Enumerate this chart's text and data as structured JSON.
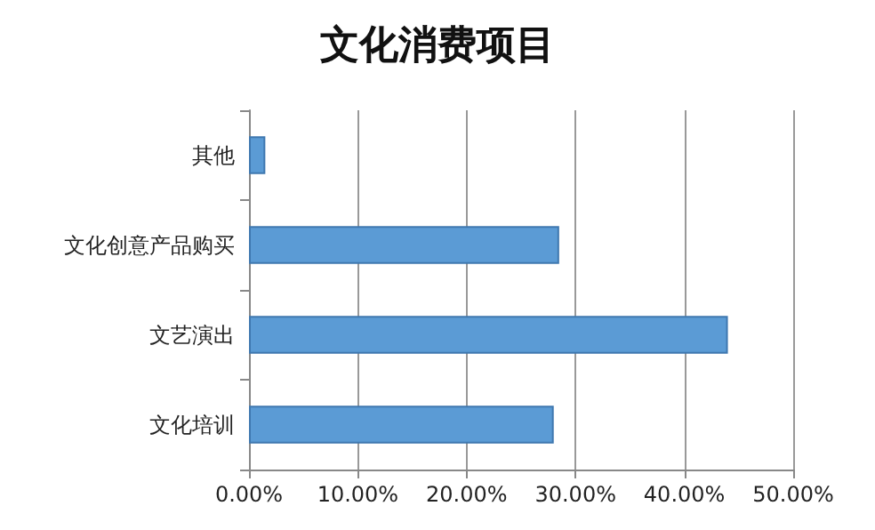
{
  "chart_data": {
    "type": "bar",
    "title": "文化消费项目",
    "orientation": "horizontal",
    "categories": [
      "其他",
      "文化创意产品购买",
      "文艺演出",
      "文化培训"
    ],
    "values": [
      1.5,
      28.5,
      44,
      28
    ],
    "color": "#5b9bd5",
    "xlim": [
      0,
      50
    ],
    "xticks": [
      {
        "value": 0,
        "label": "0.00%"
      },
      {
        "value": 10,
        "label": "10.00%"
      },
      {
        "value": 20,
        "label": "20.00%"
      },
      {
        "value": 30,
        "label": "30.00%"
      },
      {
        "value": 40,
        "label": "40.00%"
      },
      {
        "value": 50,
        "label": "50.00%"
      }
    ],
    "grid": "x"
  }
}
